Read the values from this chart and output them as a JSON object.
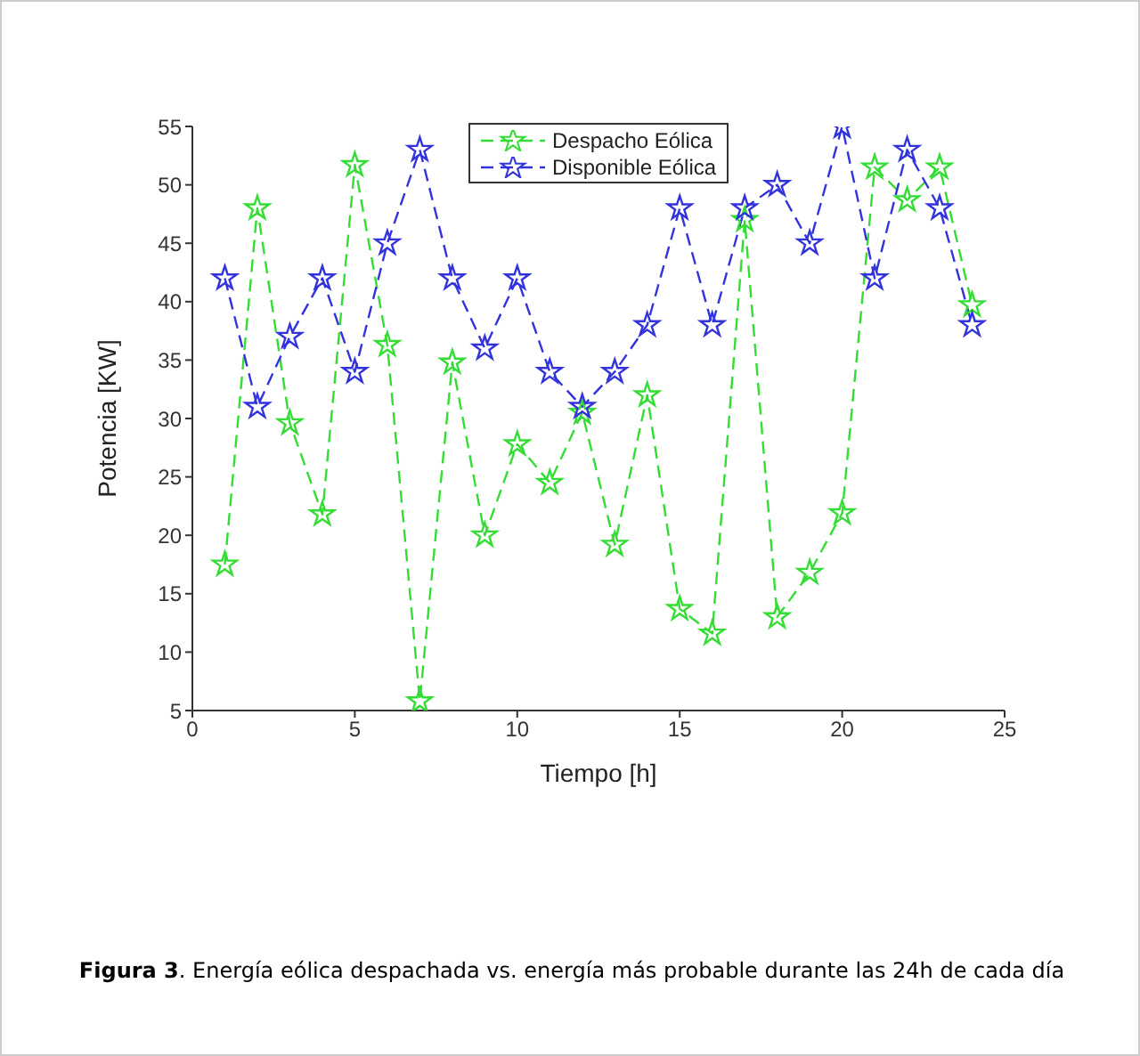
{
  "chart_data": {
    "type": "line",
    "xlabel": "Tiempo [h]",
    "ylabel": "Potencia [KW]",
    "x": [
      1,
      2,
      3,
      4,
      5,
      6,
      7,
      8,
      9,
      10,
      11,
      12,
      13,
      14,
      15,
      16,
      17,
      18,
      19,
      20,
      21,
      22,
      23,
      24
    ],
    "series": [
      {
        "name": "Despacho Eólica",
        "color": "#33dd33",
        "values": [
          17.5,
          48,
          29.6,
          21.8,
          51.7,
          36.3,
          5.8,
          34.8,
          20,
          27.8,
          24.5,
          30.5,
          19.2,
          32,
          13.7,
          11.6,
          47,
          13,
          16.8,
          21.9,
          51.5,
          48.7,
          51.5,
          39.7
        ]
      },
      {
        "name": "Disponible Eólica",
        "color": "#3333dd",
        "values": [
          42,
          31,
          37,
          42,
          34,
          45,
          53,
          42,
          36,
          42,
          34,
          31,
          34,
          38,
          48,
          38,
          48,
          50,
          45,
          55,
          42,
          53,
          48,
          38
        ]
      }
    ],
    "xlim": [
      0,
      25
    ],
    "xticks": [
      0,
      5,
      10,
      15,
      20,
      25
    ],
    "ylim": [
      5,
      55
    ],
    "yticks": [
      5,
      10,
      15,
      20,
      25,
      30,
      35,
      40,
      45,
      50,
      55
    ],
    "grid": false,
    "legend": "top",
    "marker": "star",
    "line_style": "dashed",
    "annotations": [
      "Figura 3. Energía eólica despachada vs. energía más probable durante las 24h de cada día"
    ]
  }
}
